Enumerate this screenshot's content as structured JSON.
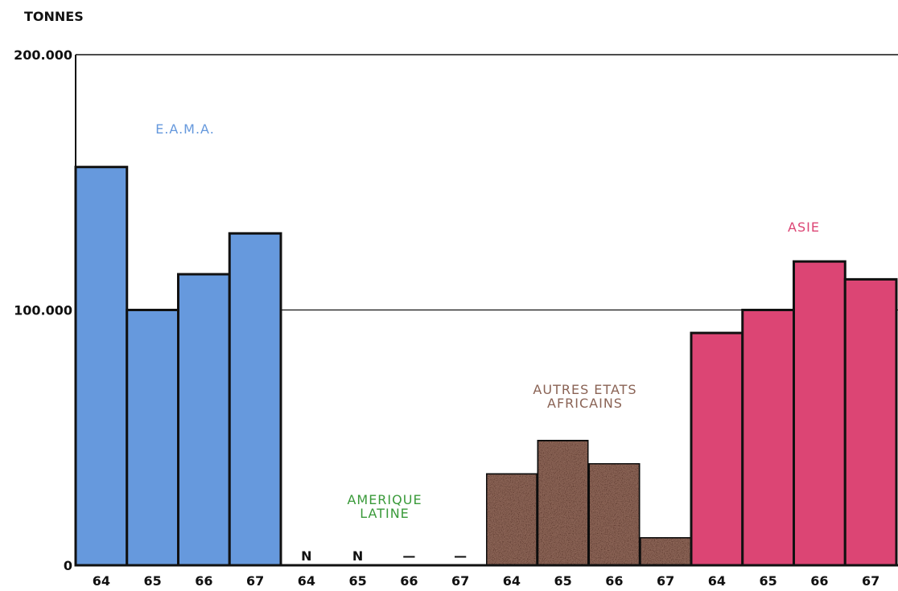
{
  "chart_data": {
    "type": "bar",
    "ylabel": "TONNES",
    "ylim": [
      0,
      200000
    ],
    "yticks": [
      {
        "value": 0,
        "label": "0"
      },
      {
        "value": 100000,
        "label": "100.000"
      },
      {
        "value": 200000,
        "label": "200.000"
      }
    ],
    "x_tick_labels": [
      "64",
      "65",
      "66",
      "67",
      "64",
      "65",
      "66",
      "67",
      "64",
      "65",
      "66",
      "67",
      "64",
      "65",
      "66",
      "67"
    ],
    "groups": [
      {
        "name": "E.A.M.A.",
        "name_lines": [
          "E.A.M.A."
        ],
        "color": "#6699dd",
        "categories": [
          "64",
          "65",
          "66",
          "67"
        ],
        "values": [
          156000,
          100000,
          114000,
          130000
        ],
        "value_labels": [
          "",
          "",
          "",
          ""
        ]
      },
      {
        "name": "AMERIQUE LATINE",
        "name_lines": [
          "AMERIQUE",
          "LATINE"
        ],
        "color": "#3a9a3a",
        "categories": [
          "64",
          "65",
          "66",
          "67"
        ],
        "values": [
          0,
          0,
          0,
          0
        ],
        "value_labels": [
          "N",
          "N",
          "—",
          "—"
        ]
      },
      {
        "name": "AUTRES ETATS AFRICAINS",
        "name_lines": [
          "AUTRES ETATS",
          "AFRICAINS"
        ],
        "color": "#8a6355",
        "categories": [
          "64",
          "65",
          "66",
          "67"
        ],
        "values": [
          36000,
          49000,
          40000,
          11000
        ],
        "value_labels": [
          "",
          "",
          "",
          ""
        ]
      },
      {
        "name": "ASIE",
        "name_lines": [
          "ASIE"
        ],
        "color": "#dc4574",
        "categories": [
          "64",
          "65",
          "66",
          "67"
        ],
        "values": [
          91000,
          100000,
          119000,
          112000
        ],
        "value_labels": [
          "",
          "",
          "",
          ""
        ]
      }
    ]
  }
}
